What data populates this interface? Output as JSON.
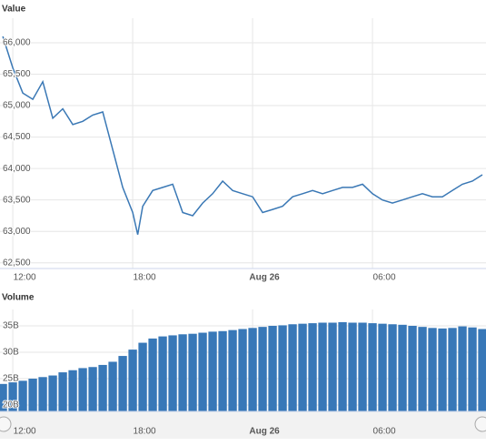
{
  "chart_data": [
    {
      "type": "line",
      "title": "Value",
      "color": "#3a78b5",
      "grid": true,
      "x": [
        11.5,
        12,
        12.5,
        13,
        13.5,
        14,
        14.5,
        15,
        15.5,
        16,
        16.5,
        17,
        17.5,
        18,
        18.25,
        18.5,
        19,
        19.5,
        20,
        20.5,
        21,
        21.5,
        22,
        22.5,
        23,
        23.5,
        24,
        24.5,
        25,
        25.5,
        26,
        26.5,
        27,
        27.5,
        28,
        28.5,
        29,
        29.5,
        30,
        30.5,
        31,
        31.5,
        32,
        32.5,
        33,
        33.5,
        34,
        34.5,
        35,
        35.5
      ],
      "values": [
        66100,
        65600,
        65200,
        65100,
        65380,
        64800,
        64950,
        64700,
        64750,
        64850,
        64900,
        64300,
        63700,
        63300,
        62950,
        63400,
        63650,
        63700,
        63750,
        63300,
        63250,
        63450,
        63600,
        63800,
        63650,
        63600,
        63550,
        63300,
        63350,
        63400,
        63550,
        63600,
        63650,
        63600,
        63650,
        63700,
        63700,
        63750,
        63600,
        63500,
        63450,
        63500,
        63550,
        63600,
        63550,
        63550,
        63650,
        63750,
        63800,
        63900
      ],
      "xlim": [
        11.36,
        35.68
      ],
      "xticks": [
        {
          "value": 12,
          "label": "12:00"
        },
        {
          "value": 18,
          "label": "18:00"
        },
        {
          "value": 24,
          "label": "Aug 26"
        },
        {
          "value": 30,
          "label": "06:00"
        }
      ],
      "ylim": [
        62410,
        66390
      ],
      "yticks": [
        {
          "value": 62500,
          "label": "62,500"
        },
        {
          "value": 63000,
          "label": "63,000"
        },
        {
          "value": 63500,
          "label": "63,500"
        },
        {
          "value": 64000,
          "label": "64,000"
        },
        {
          "value": 64500,
          "label": "64,500"
        },
        {
          "value": 65000,
          "label": "65,000"
        },
        {
          "value": 65500,
          "label": "65,500"
        },
        {
          "value": 66000,
          "label": "66,000"
        }
      ]
    },
    {
      "type": "bar",
      "title": "Volume",
      "color": "#3878b8",
      "grid": true,
      "x": [
        11.5,
        12,
        12.5,
        13,
        13.5,
        14,
        14.5,
        15,
        15.5,
        16,
        16.5,
        17,
        17.5,
        18,
        18.5,
        19,
        19.5,
        20,
        20.5,
        21,
        21.5,
        22,
        22.5,
        23,
        23.5,
        24,
        24.5,
        25,
        25.5,
        26,
        26.5,
        27,
        27.5,
        28,
        28.5,
        29,
        29.5,
        30,
        30.5,
        31,
        31.5,
        32,
        32.5,
        33,
        33.5,
        34,
        34.5,
        35,
        35.5
      ],
      "values": [
        24.0,
        24.3,
        24.6,
        25.0,
        25.3,
        25.6,
        26.2,
        26.6,
        27.0,
        27.2,
        27.6,
        28.2,
        29.3,
        30.5,
        31.8,
        32.6,
        33.0,
        33.2,
        33.4,
        33.5,
        33.7,
        33.9,
        34.0,
        34.2,
        34.4,
        34.6,
        34.8,
        35.0,
        35.1,
        35.3,
        35.4,
        35.5,
        35.6,
        35.6,
        35.7,
        35.6,
        35.6,
        35.5,
        35.4,
        35.3,
        35.2,
        35.0,
        34.8,
        34.6,
        34.5,
        34.6,
        34.9,
        34.7,
        34.4
      ],
      "xlim": [
        11.36,
        35.68
      ],
      "xticks": [
        {
          "value": 12,
          "label": "12:00"
        },
        {
          "value": 18,
          "label": "18:00"
        },
        {
          "value": 24,
          "label": "Aug 26"
        },
        {
          "value": 30,
          "label": "06:00"
        }
      ],
      "ylim": [
        18.8,
        38.1
      ],
      "yticks": [
        {
          "value": 20,
          "label": "20B"
        },
        {
          "value": 25,
          "label": "25B"
        },
        {
          "value": 30,
          "label": "30B"
        },
        {
          "value": 35,
          "label": "35B"
        }
      ]
    }
  ]
}
